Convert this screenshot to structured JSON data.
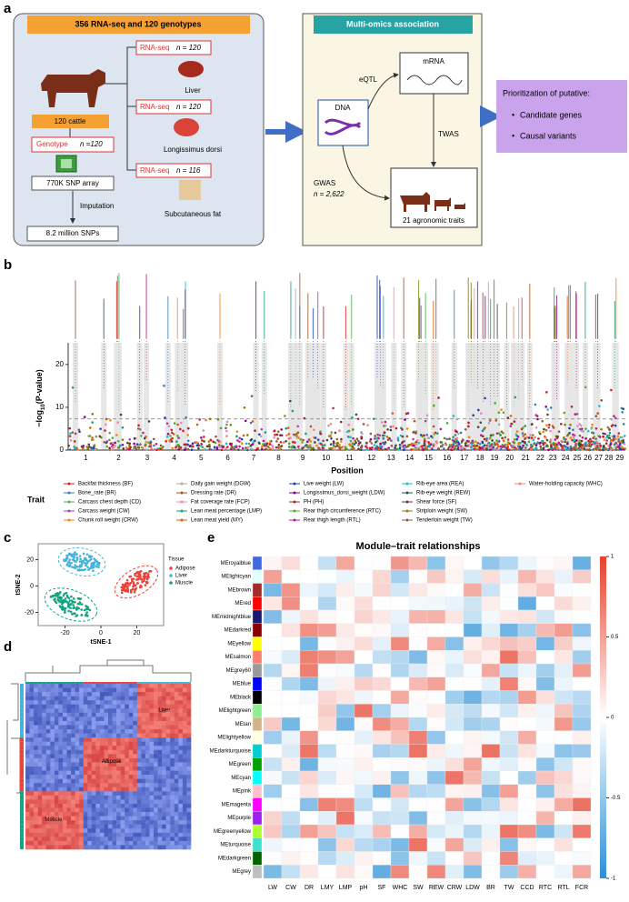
{
  "labels": {
    "a": "a",
    "b": "b",
    "c": "c",
    "d": "d",
    "e": "e"
  },
  "a": {
    "left_title": "356 RNA-seq and 120 genotypes",
    "cattle": "120 cattle",
    "genotype": "Genotype",
    "genotype_n": "n =120",
    "snp_array": "770K SNP array",
    "imputation": "Imputation",
    "snps": "8.2 million SNPs",
    "rnaseq": [
      {
        "label": "RNA-seq",
        "n": "n = 120",
        "tissue": "Liver"
      },
      {
        "label": "RNA-seq",
        "n": "n = 120",
        "tissue": "Longissimus dorsi"
      },
      {
        "label": "RNA-seq",
        "n": "n = 116",
        "tissue": "Subcutaneous fat"
      }
    ],
    "middle_title": "Multi-omics association",
    "dna": "DNA",
    "mrna": "mRNA",
    "eqtl": "eQTL",
    "twas": "TWAS",
    "gwas": "GWAS",
    "gwas_n": "n = 2,622",
    "traits": "21 agronomic traits",
    "right_title": "Prioritization of putative:",
    "right_items": [
      "Candidate genes",
      "Causal variants"
    ]
  },
  "b": {
    "y_label": [
      "−log",
      "10",
      "(P-value)"
    ],
    "x_label": "Position",
    "ylim": [
      0,
      24
    ],
    "yticks": [
      0,
      10,
      20
    ],
    "threshold": 7.3,
    "chromosomes": [
      "1",
      "2",
      "3",
      "4",
      "5",
      "6",
      "7",
      "8",
      "9",
      "10",
      "11",
      "12",
      "13",
      "14",
      "15",
      "16",
      "17",
      "18",
      "19",
      "20",
      "21",
      "22",
      "23",
      "24",
      "25",
      "26",
      "27",
      "28",
      "29"
    ],
    "legend_title": "Trait",
    "traits": [
      {
        "name": "Backfat thickness (BF)",
        "color": "#e41a1c"
      },
      {
        "name": "Bone_rate (BR)",
        "color": "#377eb8"
      },
      {
        "name": "Carcass chest depth (CD)",
        "color": "#4daf4a"
      },
      {
        "name": "Carcass weight (CW)",
        "color": "#984ea3"
      },
      {
        "name": "Chunk roll weight (CRW)",
        "color": "#ff7f00"
      },
      {
        "name": "Daily gain weight (DGW)",
        "color": "#a9a9a9"
      },
      {
        "name": "Dressing rate (DR)",
        "color": "#a65628"
      },
      {
        "name": "Fat coverage rate (FCP)",
        "color": "#f781bf"
      },
      {
        "name": "Lean meat percentage (LMP)",
        "color": "#1b9e77"
      },
      {
        "name": "Lean meat yield (MY)",
        "color": "#d95f02"
      },
      {
        "name": "Live weight (LW)",
        "color": "#1f3fbf"
      },
      {
        "name": "Longissimus_dorsi_weight (LDW)",
        "color": "#8b008b"
      },
      {
        "name": "PH (PH)",
        "color": "#b22222"
      },
      {
        "name": "Rear thigh circumference (RTC)",
        "color": "#66a61e"
      },
      {
        "name": "Rear thigh length (RTL)",
        "color": "#c71585"
      },
      {
        "name": "Rib-eye area (REA)",
        "color": "#17becf"
      },
      {
        "name": "Rib-eye weight (REW)",
        "color": "#2f4f4f"
      },
      {
        "name": "Shear force (SF)",
        "color": "#6b3a2a"
      },
      {
        "name": "Striploin weight (SW)",
        "color": "#808000"
      },
      {
        "name": "Tenderloin weight (TW)",
        "color": "#8c564b"
      },
      {
        "name": "Water-holding capacity (WHC)",
        "color": "#fb8072"
      }
    ]
  },
  "c": {
    "x_label": "tSNE-1",
    "y_label": "tSNE-2",
    "xlim": [
      -35,
      35
    ],
    "ylim": [
      -30,
      32
    ],
    "xticks": [
      -20,
      0,
      20
    ],
    "yticks": [
      -20,
      0,
      20
    ],
    "legend_title": "Tissue",
    "tissues": [
      {
        "name": "Adipose",
        "color": "#e8423a"
      },
      {
        "name": "Liver",
        "color": "#45b3d8"
      },
      {
        "name": "Muscle",
        "color": "#14a37f"
      }
    ]
  },
  "d": {
    "blocks": [
      "Liver",
      "Adipose",
      "Muscle"
    ]
  },
  "e": {
    "title": "Module–trait relationships",
    "modules": [
      {
        "name": "MEroyalblue",
        "color": "#4169e1"
      },
      {
        "name": "MElightcyan",
        "color": "#e0ffff"
      },
      {
        "name": "MEbrown",
        "color": "#a52a2a"
      },
      {
        "name": "MEred",
        "color": "#ff0000"
      },
      {
        "name": "MEmidnightblue",
        "color": "#191970"
      },
      {
        "name": "MEdarkred",
        "color": "#8b0000"
      },
      {
        "name": "MEyellow",
        "color": "#ffff00"
      },
      {
        "name": "MEsalmon",
        "color": "#fa8072"
      },
      {
        "name": "MEgrey60",
        "color": "#999999"
      },
      {
        "name": "MEblue",
        "color": "#0000ff"
      },
      {
        "name": "MEblack",
        "color": "#000000"
      },
      {
        "name": "MElightgreen",
        "color": "#90ee90"
      },
      {
        "name": "MEtan",
        "color": "#d2b48c"
      },
      {
        "name": "MElightyellow",
        "color": "#ffffe0"
      },
      {
        "name": "MEdarkturquoise",
        "color": "#00ced1"
      },
      {
        "name": "MEgreen",
        "color": "#00a000"
      },
      {
        "name": "MEcyan",
        "color": "#00ffff"
      },
      {
        "name": "MEpink",
        "color": "#ffc0cb"
      },
      {
        "name": "MEmagenta",
        "color": "#ff00ff"
      },
      {
        "name": "MEpurple",
        "color": "#a020f0"
      },
      {
        "name": "MEgreenyellow",
        "color": "#adff2f"
      },
      {
        "name": "MEturquoise",
        "color": "#40e0d0"
      },
      {
        "name": "MEdarkgreen",
        "color": "#006400"
      },
      {
        "name": "MEgrey",
        "color": "#bebebe"
      }
    ],
    "traits": [
      "LW",
      "CW",
      "DR",
      "LMY",
      "LMP",
      "pH",
      "SF",
      "WHC",
      "SW",
      "REW",
      "CRW",
      "LDW",
      "BR",
      "TW",
      "CCD",
      "RTC",
      "RTL",
      "FCR"
    ],
    "colorbar_lim": [
      -1,
      1
    ],
    "colorbar_ticks": [
      1,
      0.5,
      0,
      -0.5,
      -1
    ]
  }
}
